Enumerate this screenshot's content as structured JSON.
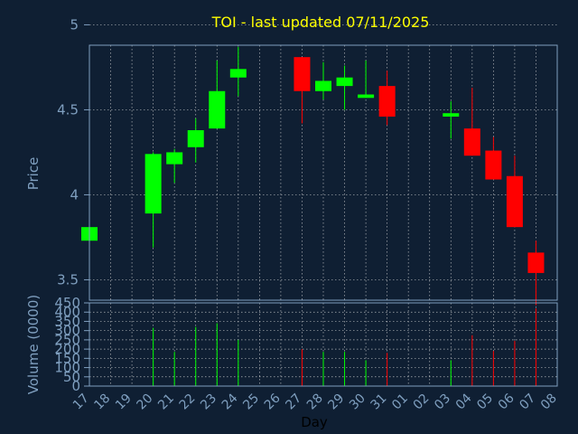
{
  "chart_data": {
    "type": "candlestick",
    "title": "TOI - last updated 07/11/2025",
    "xlabel": "Day",
    "price_panel": {
      "ylabel": "Price",
      "ylim": [
        3.38,
        4.88
      ],
      "yticks": [
        "3.5",
        "4",
        "4.5",
        "5"
      ],
      "grid": true
    },
    "volume_panel": {
      "ylabel": "Volume (0000)",
      "ylim": [
        0,
        450
      ],
      "yticks": [
        "0",
        "50",
        "100",
        "150",
        "200",
        "250",
        "300",
        "350",
        "400",
        "450"
      ],
      "grid": true
    },
    "x_ticks": [
      "17",
      "18",
      "19",
      "20",
      "21",
      "22",
      "23",
      "24",
      "25",
      "26",
      "27",
      "28",
      "29",
      "30",
      "31",
      "01",
      "02",
      "03",
      "04",
      "05",
      "06",
      "07",
      "08"
    ],
    "candles": [
      {
        "day": "17",
        "open": 3.73,
        "high": 3.81,
        "low": 3.73,
        "close": 3.81,
        "volume": 0
      },
      {
        "day": "20",
        "open": 3.89,
        "high": 4.25,
        "low": 3.69,
        "close": 4.24,
        "volume": 315
      },
      {
        "day": "21",
        "open": 4.18,
        "high": 4.27,
        "low": 4.07,
        "close": 4.25,
        "volume": 185
      },
      {
        "day": "22",
        "open": 4.28,
        "high": 4.45,
        "low": 4.19,
        "close": 4.38,
        "volume": 320
      },
      {
        "day": "23",
        "open": 4.39,
        "high": 4.79,
        "low": 4.39,
        "close": 4.61,
        "volume": 340
      },
      {
        "day": "24",
        "open": 4.69,
        "high": 4.87,
        "low": 4.58,
        "close": 4.74,
        "volume": 250
      },
      {
        "day": "27",
        "open": 4.81,
        "high": 4.81,
        "low": 4.42,
        "close": 4.61,
        "volume": 200
      },
      {
        "day": "28",
        "open": 4.61,
        "high": 4.78,
        "low": 4.56,
        "close": 4.67,
        "volume": 185
      },
      {
        "day": "29",
        "open": 4.64,
        "high": 4.76,
        "low": 4.5,
        "close": 4.69,
        "volume": 185
      },
      {
        "day": "30",
        "open": 4.57,
        "high": 4.79,
        "low": 4.57,
        "close": 4.59,
        "volume": 140
      },
      {
        "day": "31",
        "open": 4.64,
        "high": 4.73,
        "low": 4.41,
        "close": 4.46,
        "volume": 180
      },
      {
        "day": "03",
        "open": 4.46,
        "high": 4.55,
        "low": 4.33,
        "close": 4.48,
        "volume": 140
      },
      {
        "day": "04",
        "open": 4.39,
        "high": 4.63,
        "low": 4.23,
        "close": 4.23,
        "volume": 275
      },
      {
        "day": "05",
        "open": 4.26,
        "high": 4.34,
        "low": 4.09,
        "close": 4.09,
        "volume": 190
      },
      {
        "day": "06",
        "open": 4.11,
        "high": 4.23,
        "low": 3.81,
        "close": 3.81,
        "volume": 245
      },
      {
        "day": "07",
        "open": 3.66,
        "high": 3.73,
        "low": 3.35,
        "close": 3.54,
        "volume": 420
      }
    ],
    "colors": {
      "background": "#0f1f33",
      "up": "#00ff00",
      "down": "#ff0000",
      "text": "#7f9fbf",
      "title": "#ffff00",
      "axis": "#7f9fbf",
      "grid": "#d8d8d8"
    }
  }
}
